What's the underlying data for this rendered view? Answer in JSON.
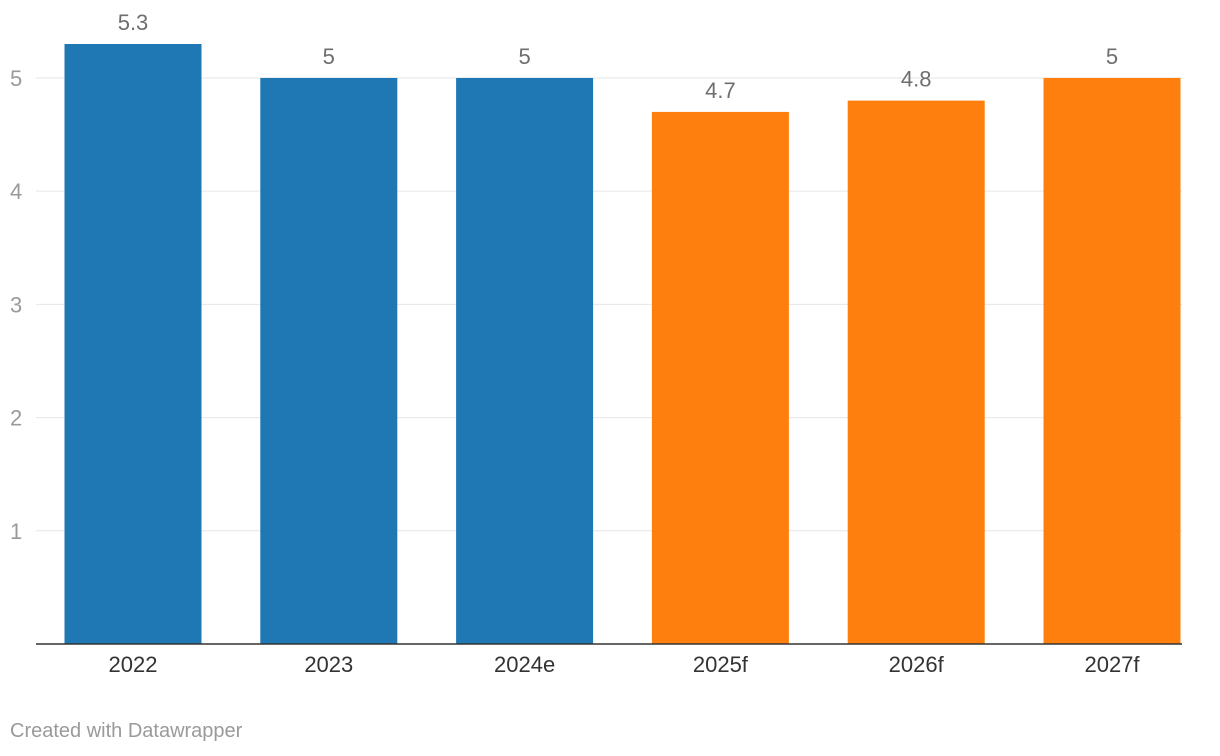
{
  "chart_data": {
    "type": "bar",
    "categories": [
      "2022",
      "2023",
      "2024e",
      "2025f",
      "2026f",
      "2027f"
    ],
    "values": [
      5.3,
      5,
      5,
      4.7,
      4.8,
      5
    ],
    "value_labels": [
      "5.3",
      "5",
      "5",
      "4.7",
      "4.8",
      "5"
    ],
    "bar_colors": [
      "#1f77b4",
      "#1f77b4",
      "#1f77b4",
      "#ff7f0e",
      "#ff7f0e",
      "#ff7f0e"
    ],
    "y_ticks": [
      1,
      2,
      3,
      4,
      5
    ],
    "ylim": [
      0,
      5.3
    ],
    "grid": true,
    "title": "",
    "xlabel": "",
    "ylabel": ""
  },
  "credit": "Created with Datawrapper"
}
